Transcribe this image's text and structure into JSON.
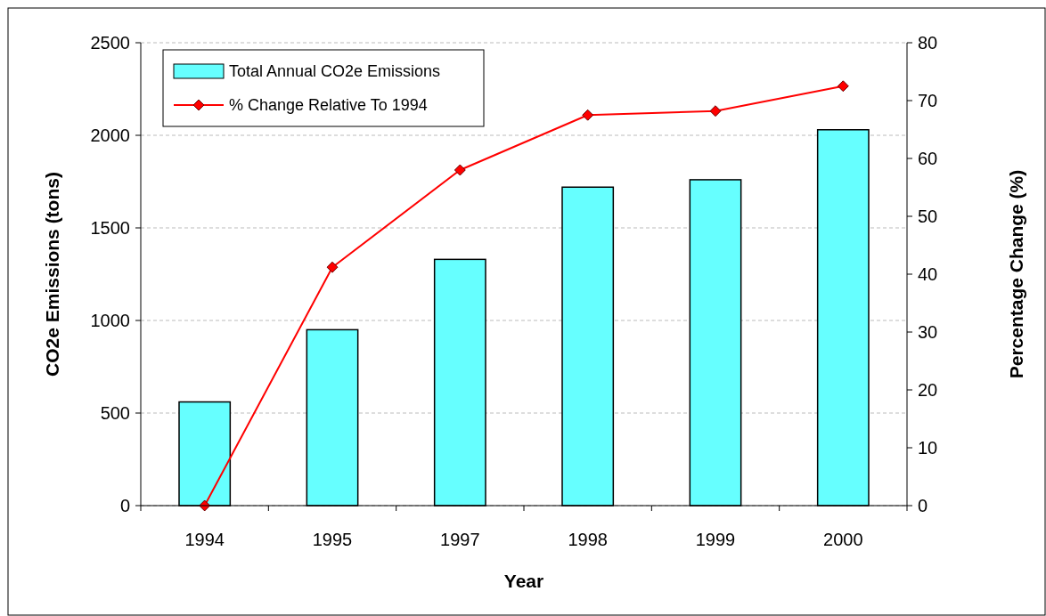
{
  "chart_data": {
    "type": "bar",
    "xlabel": "Year",
    "ylabel": "CO2e Emissions (tons)",
    "y2label": "Percentage Change (%)",
    "categories": [
      "1994",
      "1995",
      "1997",
      "1998",
      "1999",
      "2000"
    ],
    "series": [
      {
        "name": "Total Annual CO2e Emissions",
        "color": "#66ffff",
        "values": [
          560,
          950,
          1330,
          1720,
          1760,
          2030
        ]
      },
      {
        "name": "% Change Relative To 1994",
        "type": "line",
        "axis": "y2",
        "color": "#ff0000",
        "marker": "diamond",
        "values": [
          0,
          41.2,
          58,
          67.5,
          68.2,
          72.5
        ]
      }
    ],
    "ylim": [
      0,
      2500
    ],
    "yticks": [
      0,
      500,
      1000,
      1500,
      2000,
      2500
    ],
    "y2lim": [
      0,
      80
    ],
    "y2ticks": [
      0,
      10,
      20,
      30,
      40,
      50,
      60,
      70,
      80
    ],
    "grid": "y",
    "legend": "top left"
  }
}
